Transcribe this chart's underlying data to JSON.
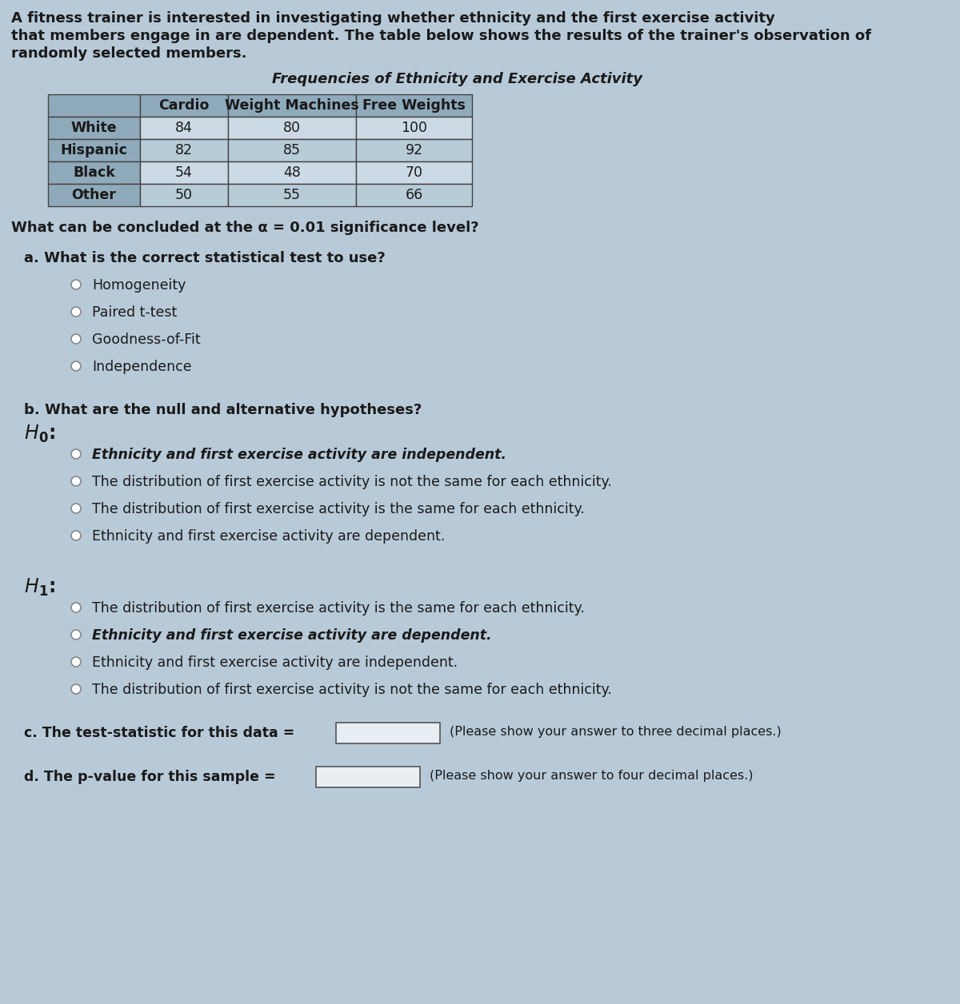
{
  "intro_text_lines": [
    "A fitness trainer is interested in investigating whether ethnicity and the first exercise activity",
    "that members engage in are dependent. The table below shows the results of the trainer's observation of",
    "randomly selected members."
  ],
  "table_title": "Frequencies of Ethnicity and Exercise Activity",
  "table_headers": [
    "",
    "Cardio",
    "Weight Machines",
    "Free Weights"
  ],
  "table_rows": [
    [
      "White",
      "84",
      "80",
      "100"
    ],
    [
      "Hispanic",
      "82",
      "85",
      "92"
    ],
    [
      "Black",
      "54",
      "48",
      "70"
    ],
    [
      "Other",
      "50",
      "55",
      "66"
    ]
  ],
  "significance_line": "What can be concluded at the α = 0.01 significance level?",
  "part_a_label": "a. What is the correct statistical test to use?",
  "part_a_options": [
    "Homogeneity",
    "Paired t-test",
    "Goodness-of-Fit",
    "Independence"
  ],
  "part_b_label": "b. What are the null and alternative hypotheses?",
  "H0_options": [
    "Ethnicity and first exercise activity are independent.",
    "The distribution of first exercise activity is not the same for each ethnicity.",
    "The distribution of first exercise activity is the same for each ethnicity.",
    "Ethnicity and first exercise activity are dependent."
  ],
  "H1_options": [
    "The distribution of first exercise activity is the same for each ethnicity.",
    "Ethnicity and first exercise activity are dependent.",
    "Ethnicity and first exercise activity are independent.",
    "The distribution of first exercise activity is not the same for each ethnicity."
  ],
  "part_c_label": "c. The test-statistic for this data =",
  "part_c_note": "(Please show your answer to three decimal places.)",
  "part_d_label": "d. The p-value for this sample =",
  "part_d_note": "(Please show your answer to four decimal places.)",
  "bg_color": "#b8cad8",
  "table_bg_dark": "#8faabb",
  "table_bg_light": "#ccdae6",
  "table_bg_alt": "#b8ccd8",
  "text_color": "#1a1a1a",
  "radio_color": "#cccccc",
  "radio_edge": "#888888",
  "input_box_color": "#e8eef2"
}
